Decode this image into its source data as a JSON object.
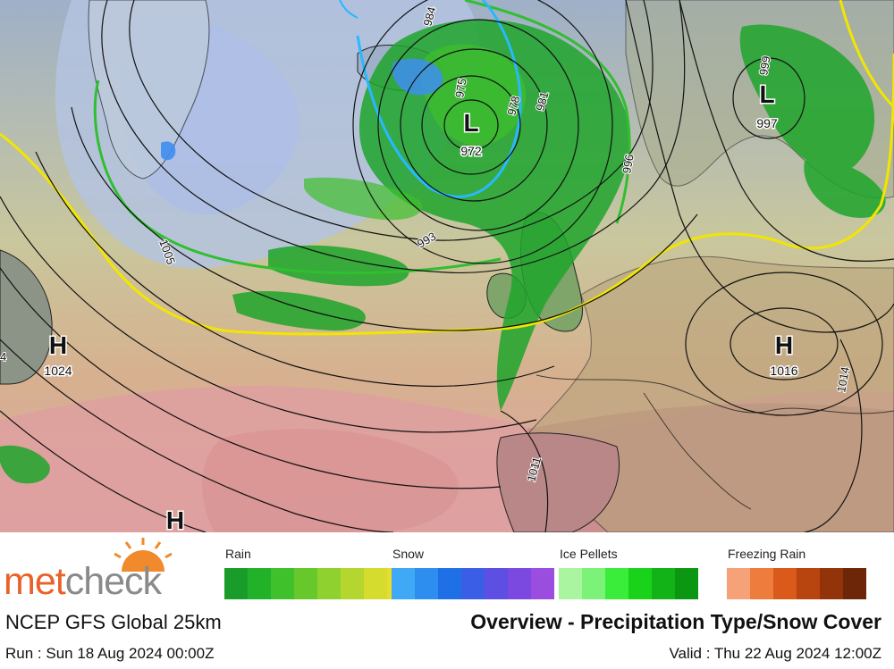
{
  "map": {
    "pressure_systems": [
      {
        "type": "L",
        "value": "972"
      },
      {
        "type": "L",
        "value": "997"
      },
      {
        "type": "H",
        "value": "1024"
      },
      {
        "type": "H",
        "value": "1016"
      },
      {
        "type": "H",
        "value": ""
      }
    ],
    "isobar_labels": [
      "984",
      "975",
      "978",
      "981",
      "993",
      "996",
      "999",
      "1005",
      "1011",
      "1014",
      "4"
    ],
    "colors": {
      "high_pressure_warm": "#d9a3a3",
      "low_pressure_cool": "#b8c5de",
      "rain": "#1fa52b",
      "isobar": "#111111",
      "zero_line": "#f2e600",
      "freezing_line": "#29b8ff",
      "snow_line": "#2fbf2f"
    }
  },
  "brand": {
    "met": "met",
    "check": "check"
  },
  "legend": {
    "rain": {
      "label": "Rain",
      "colors": [
        "#1a9c2a",
        "#22b22a",
        "#3fc12b",
        "#67c82c",
        "#8fd12e",
        "#b4d62f",
        "#d5dc2e",
        "#e8dc2c"
      ]
    },
    "snow": {
      "label": "Snow",
      "colors": [
        "#3fa9f5",
        "#2e8ef0",
        "#1f6fe6",
        "#3a5ee5",
        "#5c4fe2",
        "#7b49e0",
        "#9a4ddf"
      ]
    },
    "ice": {
      "label": "Ice Pellets",
      "colors": [
        "#a9f5a0",
        "#7cf279",
        "#3aed3a",
        "#19d31a",
        "#11b317",
        "#0c9713"
      ]
    },
    "freezing": {
      "label": "Freezing Rain",
      "colors": [
        "#f5a279",
        "#ee7c3c",
        "#d95a1a",
        "#b8440f",
        "#93330a",
        "#6e2608"
      ]
    }
  },
  "footer": {
    "model": "NCEP GFS Global 25km",
    "run": "Run : Sun 18 Aug 2024 00:00Z",
    "title": "Overview - Precipitation Type/Snow Cover",
    "valid": "Valid : Thu 22 Aug 2024 12:00Z"
  }
}
